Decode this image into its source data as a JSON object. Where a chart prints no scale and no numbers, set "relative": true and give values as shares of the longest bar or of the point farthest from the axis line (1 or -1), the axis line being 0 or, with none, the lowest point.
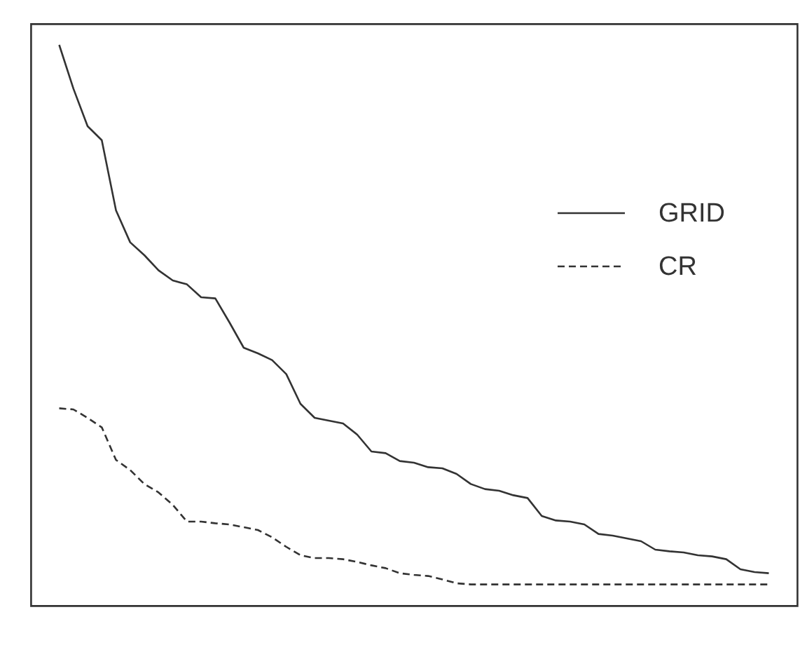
{
  "chart_data": {
    "type": "line",
    "relative": true,
    "legend": "top right",
    "categories": [
      null,
      null,
      null,
      null,
      null,
      null,
      null,
      null,
      null,
      null,
      null,
      null,
      null,
      null,
      null,
      null,
      null,
      null,
      null,
      null,
      null,
      null,
      null,
      null,
      null,
      null,
      null,
      null,
      null,
      null,
      null,
      null,
      null,
      null,
      null,
      null,
      null,
      null,
      null,
      null,
      null,
      null,
      null,
      null,
      null,
      null,
      null,
      null,
      null,
      null,
      null
    ],
    "series": [
      {
        "name": "GRID",
        "color": "#333333",
        "line_style": "solid",
        "values": [
          1.0,
          0.922,
          0.855,
          0.83,
          0.705,
          0.648,
          0.625,
          0.598,
          0.58,
          0.573,
          0.55,
          0.548,
          0.505,
          0.46,
          0.45,
          0.438,
          0.413,
          0.36,
          0.335,
          0.33,
          0.325,
          0.305,
          0.275,
          0.272,
          0.258,
          0.255,
          0.247,
          0.245,
          0.235,
          0.217,
          0.208,
          0.205,
          0.197,
          0.192,
          0.16,
          0.152,
          0.15,
          0.145,
          0.128,
          0.125,
          0.12,
          0.115,
          0.1,
          0.097,
          0.095,
          0.09,
          0.088,
          0.083,
          0.065,
          0.06,
          0.058
        ]
      },
      {
        "name": "CR",
        "color": "#333333",
        "line_style": "dashed",
        "values": [
          0.352,
          0.35,
          0.335,
          0.318,
          0.26,
          0.242,
          0.217,
          0.202,
          0.18,
          0.15,
          0.15,
          0.147,
          0.145,
          0.14,
          0.135,
          0.122,
          0.105,
          0.09,
          0.085,
          0.085,
          0.083,
          0.078,
          0.072,
          0.067,
          0.058,
          0.055,
          0.053,
          0.047,
          0.04,
          0.038,
          0.038,
          0.038,
          0.038,
          0.038,
          0.038,
          0.038,
          0.038,
          0.038,
          0.038,
          0.038,
          0.038,
          0.038,
          0.038,
          0.038,
          0.038,
          0.038,
          0.038,
          0.038,
          0.038,
          0.038,
          0.038
        ]
      }
    ]
  }
}
